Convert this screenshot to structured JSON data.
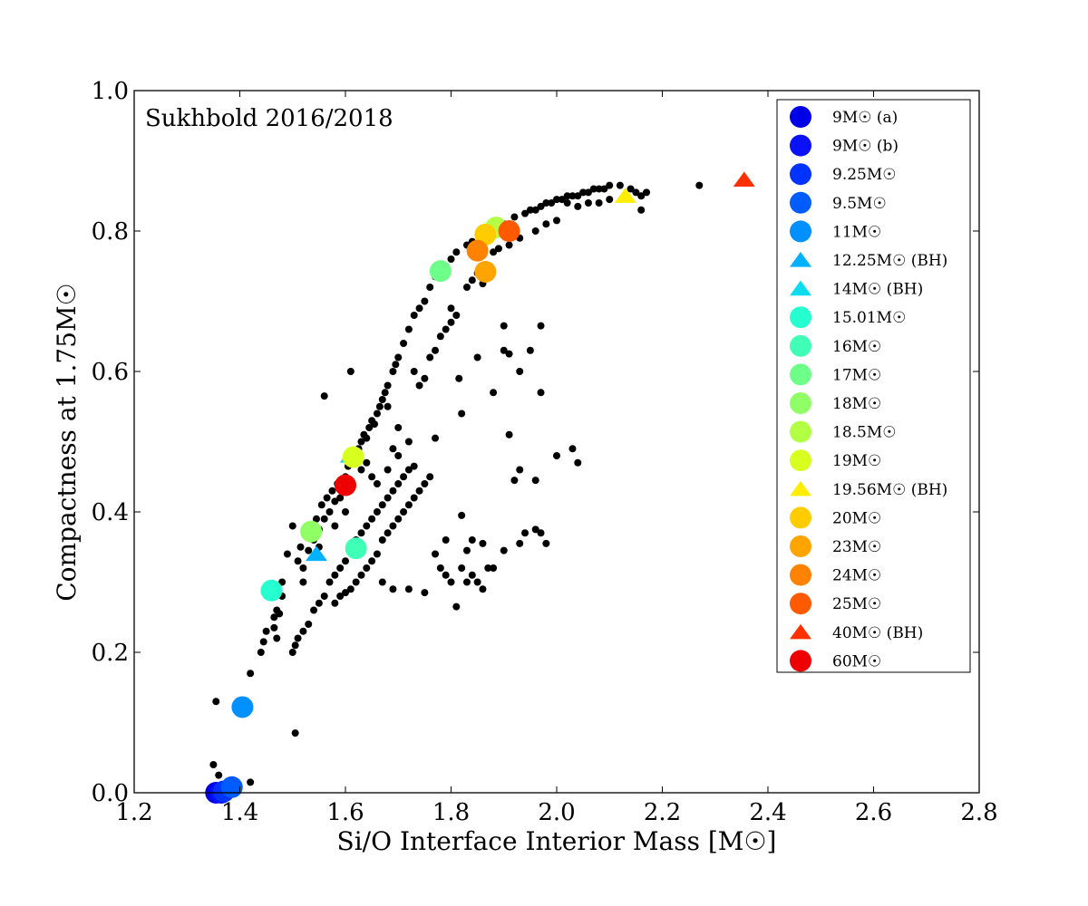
{
  "chart_data": {
    "type": "scatter",
    "annotation": "Sukhbold 2016/2018",
    "xlabel": "Si/O Interface Interior Mass [M☉]",
    "ylabel": "Compactness at 1.75M☉",
    "xlim": [
      1.2,
      2.8
    ],
    "ylim": [
      0.0,
      1.0
    ],
    "xticks": [
      "1.2",
      "1.4",
      "1.6",
      "1.8",
      "2.0",
      "2.2",
      "2.4",
      "2.6",
      "2.8"
    ],
    "yticks": [
      "0.0",
      "0.2",
      "0.4",
      "0.6",
      "0.8",
      "1.0"
    ],
    "legend_position": "top-right",
    "background_points": [
      [
        1.35,
        0.04
      ],
      [
        1.355,
        0.13
      ],
      [
        1.36,
        0.025
      ],
      [
        1.42,
        0.015
      ],
      [
        1.42,
        0.17
      ],
      [
        1.44,
        0.2
      ],
      [
        1.445,
        0.215
      ],
      [
        1.45,
        0.23
      ],
      [
        1.465,
        0.25
      ],
      [
        1.465,
        0.235
      ],
      [
        1.47,
        0.22
      ],
      [
        1.475,
        0.255
      ],
      [
        1.48,
        0.3
      ],
      [
        1.49,
        0.34
      ],
      [
        1.5,
        0.38
      ],
      [
        1.505,
        0.085
      ],
      [
        1.51,
        0.33
      ],
      [
        1.515,
        0.35
      ],
      [
        1.52,
        0.32
      ],
      [
        1.53,
        0.345
      ],
      [
        1.54,
        0.36
      ],
      [
        1.545,
        0.39
      ],
      [
        1.55,
        0.375
      ],
      [
        1.555,
        0.41
      ],
      [
        1.56,
        0.39
      ],
      [
        1.565,
        0.42
      ],
      [
        1.57,
        0.4
      ],
      [
        1.575,
        0.43
      ],
      [
        1.58,
        0.415
      ],
      [
        1.585,
        0.44
      ],
      [
        1.59,
        0.42
      ],
      [
        1.6,
        0.45
      ],
      [
        1.605,
        0.465
      ],
      [
        1.61,
        0.47
      ],
      [
        1.62,
        0.48
      ],
      [
        1.625,
        0.49
      ],
      [
        1.63,
        0.5
      ],
      [
        1.635,
        0.51
      ],
      [
        1.64,
        0.505
      ],
      [
        1.645,
        0.52
      ],
      [
        1.65,
        0.53
      ],
      [
        1.655,
        0.525
      ],
      [
        1.66,
        0.54
      ],
      [
        1.665,
        0.55
      ],
      [
        1.67,
        0.56
      ],
      [
        1.675,
        0.57
      ],
      [
        1.68,
        0.58
      ],
      [
        1.69,
        0.6
      ],
      [
        1.695,
        0.61
      ],
      [
        1.7,
        0.62
      ],
      [
        1.71,
        0.64
      ],
      [
        1.72,
        0.66
      ],
      [
        1.73,
        0.68
      ],
      [
        1.74,
        0.69
      ],
      [
        1.75,
        0.7
      ],
      [
        1.76,
        0.72
      ],
      [
        1.77,
        0.735
      ],
      [
        1.79,
        0.75
      ],
      [
        1.8,
        0.76
      ],
      [
        1.81,
        0.77
      ],
      [
        1.83,
        0.78
      ],
      [
        1.84,
        0.785
      ],
      [
        1.86,
        0.79
      ],
      [
        1.87,
        0.8
      ],
      [
        1.88,
        0.8
      ],
      [
        1.89,
        0.805
      ],
      [
        1.9,
        0.81
      ],
      [
        1.92,
        0.82
      ],
      [
        1.94,
        0.825
      ],
      [
        1.95,
        0.83
      ],
      [
        1.96,
        0.83
      ],
      [
        1.97,
        0.835
      ],
      [
        1.98,
        0.84
      ],
      [
        1.99,
        0.84
      ],
      [
        2.0,
        0.845
      ],
      [
        2.01,
        0.845
      ],
      [
        2.02,
        0.85
      ],
      [
        2.03,
        0.85
      ],
      [
        2.04,
        0.85
      ],
      [
        2.05,
        0.855
      ],
      [
        2.06,
        0.855
      ],
      [
        2.07,
        0.86
      ],
      [
        2.08,
        0.86
      ],
      [
        2.09,
        0.86
      ],
      [
        2.1,
        0.865
      ],
      [
        2.12,
        0.865
      ],
      [
        2.14,
        0.86
      ],
      [
        2.15,
        0.855
      ],
      [
        2.16,
        0.85
      ],
      [
        2.16,
        0.83
      ],
      [
        2.17,
        0.855
      ],
      [
        2.02,
        0.84
      ],
      [
        2.04,
        0.835
      ],
      [
        2.06,
        0.84
      ],
      [
        2.08,
        0.84
      ],
      [
        2.1,
        0.845
      ],
      [
        1.96,
        0.8
      ],
      [
        1.98,
        0.81
      ],
      [
        2.0,
        0.815
      ],
      [
        1.93,
        0.79
      ],
      [
        1.91,
        0.78
      ],
      [
        1.89,
        0.775
      ],
      [
        1.88,
        0.77
      ],
      [
        1.85,
        0.74
      ],
      [
        1.84,
        0.73
      ],
      [
        1.86,
        0.725
      ],
      [
        2.27,
        0.865
      ],
      [
        1.5,
        0.2
      ],
      [
        1.505,
        0.21
      ],
      [
        1.51,
        0.22
      ],
      [
        1.52,
        0.23
      ],
      [
        1.53,
        0.24
      ],
      [
        1.54,
        0.26
      ],
      [
        1.55,
        0.27
      ],
      [
        1.56,
        0.28
      ],
      [
        1.57,
        0.3
      ],
      [
        1.58,
        0.31
      ],
      [
        1.59,
        0.32
      ],
      [
        1.6,
        0.33
      ],
      [
        1.61,
        0.35
      ],
      [
        1.62,
        0.36
      ],
      [
        1.63,
        0.37
      ],
      [
        1.64,
        0.38
      ],
      [
        1.65,
        0.39
      ],
      [
        1.66,
        0.4
      ],
      [
        1.67,
        0.41
      ],
      [
        1.68,
        0.42
      ],
      [
        1.69,
        0.43
      ],
      [
        1.7,
        0.44
      ],
      [
        1.71,
        0.45
      ],
      [
        1.72,
        0.46
      ],
      [
        1.73,
        0.465
      ],
      [
        1.58,
        0.27
      ],
      [
        1.59,
        0.28
      ],
      [
        1.6,
        0.285
      ],
      [
        1.61,
        0.29
      ],
      [
        1.62,
        0.3
      ],
      [
        1.63,
        0.31
      ],
      [
        1.64,
        0.32
      ],
      [
        1.65,
        0.33
      ],
      [
        1.66,
        0.34
      ],
      [
        1.67,
        0.36
      ],
      [
        1.68,
        0.37
      ],
      [
        1.69,
        0.38
      ],
      [
        1.7,
        0.39
      ],
      [
        1.71,
        0.4
      ],
      [
        1.72,
        0.41
      ],
      [
        1.73,
        0.42
      ],
      [
        1.74,
        0.43
      ],
      [
        1.75,
        0.44
      ],
      [
        1.76,
        0.45
      ],
      [
        1.67,
        0.3
      ],
      [
        1.69,
        0.29
      ],
      [
        1.72,
        0.29
      ],
      [
        1.75,
        0.285
      ],
      [
        1.77,
        0.34
      ],
      [
        1.78,
        0.32
      ],
      [
        1.79,
        0.31
      ],
      [
        1.8,
        0.3
      ],
      [
        1.81,
        0.265
      ],
      [
        1.82,
        0.32
      ],
      [
        1.83,
        0.3
      ],
      [
        1.84,
        0.31
      ],
      [
        1.85,
        0.3
      ],
      [
        1.86,
        0.29
      ],
      [
        1.87,
        0.32
      ],
      [
        1.88,
        0.32
      ],
      [
        1.79,
        0.36
      ],
      [
        1.82,
        0.395
      ],
      [
        1.83,
        0.345
      ],
      [
        1.84,
        0.36
      ],
      [
        1.86,
        0.355
      ],
      [
        1.82,
        0.54
      ],
      [
        1.815,
        0.59
      ],
      [
        1.8,
        0.69
      ],
      [
        1.83,
        0.72
      ],
      [
        1.77,
        0.505
      ],
      [
        1.73,
        0.6
      ],
      [
        1.85,
        0.62
      ],
      [
        1.9,
        0.63
      ],
      [
        1.91,
        0.51
      ],
      [
        1.93,
        0.6
      ],
      [
        1.95,
        0.63
      ],
      [
        1.97,
        0.665
      ],
      [
        1.97,
        0.57
      ],
      [
        1.88,
        0.57
      ],
      [
        1.9,
        0.665
      ],
      [
        1.91,
        0.625
      ],
      [
        1.92,
        0.445
      ],
      [
        1.93,
        0.46
      ],
      [
        2.0,
        0.48
      ],
      [
        2.03,
        0.49
      ],
      [
        2.04,
        0.47
      ],
      [
        1.96,
        0.445
      ],
      [
        1.9,
        0.345
      ],
      [
        1.93,
        0.355
      ],
      [
        1.94,
        0.37
      ],
      [
        1.96,
        0.375
      ],
      [
        1.97,
        0.37
      ],
      [
        1.98,
        0.355
      ],
      [
        1.56,
        0.565
      ],
      [
        1.61,
        0.6
      ],
      [
        1.68,
        0.55
      ],
      [
        1.7,
        0.52
      ],
      [
        1.72,
        0.5
      ],
      [
        1.65,
        0.45
      ],
      [
        1.66,
        0.44
      ],
      [
        1.6,
        0.4
      ],
      [
        1.58,
        0.38
      ],
      [
        1.55,
        0.35
      ],
      [
        1.52,
        0.3
      ],
      [
        1.48,
        0.28
      ],
      [
        1.47,
        0.26
      ],
      [
        1.63,
        0.46
      ],
      [
        1.64,
        0.47
      ],
      [
        1.68,
        0.46
      ],
      [
        1.69,
        0.49
      ],
      [
        1.7,
        0.48
      ],
      [
        1.74,
        0.58
      ],
      [
        1.75,
        0.59
      ],
      [
        1.76,
        0.62
      ],
      [
        1.77,
        0.63
      ],
      [
        1.78,
        0.65
      ],
      [
        1.79,
        0.66
      ],
      [
        1.8,
        0.67
      ],
      [
        1.81,
        0.68
      ]
    ],
    "series": [
      {
        "name": "9M☉ (a)",
        "x": 1.355,
        "y": 0.0,
        "marker": "circle",
        "color": "#0000e6"
      },
      {
        "name": "9M☉ (b)",
        "x": 1.365,
        "y": 0.0,
        "marker": "circle",
        "color": "#0a12f5"
      },
      {
        "name": "9.25M☉",
        "x": 1.37,
        "y": 0.002,
        "marker": "circle",
        "color": "#0033ff"
      },
      {
        "name": "9.5M☉",
        "x": 1.385,
        "y": 0.008,
        "marker": "circle",
        "color": "#005cff"
      },
      {
        "name": "11M☉",
        "x": 1.405,
        "y": 0.122,
        "marker": "circle",
        "color": "#0090ff"
      },
      {
        "name": "12.25M☉ (BH)",
        "x": 1.545,
        "y": 0.34,
        "marker": "triangle",
        "color": "#00b2ff"
      },
      {
        "name": "14M☉ (BH)",
        "x": 1.61,
        "y": 0.48,
        "marker": "triangle",
        "color": "#0ddcf0"
      },
      {
        "name": "15.01M☉",
        "x": 1.46,
        "y": 0.288,
        "marker": "circle",
        "color": "#26ffd0"
      },
      {
        "name": "16M☉",
        "x": 1.62,
        "y": 0.348,
        "marker": "circle",
        "color": "#40ffb6"
      },
      {
        "name": "17M☉",
        "x": 1.78,
        "y": 0.743,
        "marker": "circle",
        "color": "#6dff8a"
      },
      {
        "name": "18M☉",
        "x": 1.535,
        "y": 0.372,
        "marker": "circle",
        "color": "#90ff66"
      },
      {
        "name": "18.5M☉",
        "x": 1.885,
        "y": 0.805,
        "marker": "circle",
        "color": "#b2ff46"
      },
      {
        "name": "19M☉",
        "x": 1.615,
        "y": 0.478,
        "marker": "circle",
        "color": "#d7ff20"
      },
      {
        "name": "19.56M☉ (BH)",
        "x": 2.13,
        "y": 0.85,
        "marker": "triangle",
        "color": "#ffee00"
      },
      {
        "name": "20M☉",
        "x": 1.865,
        "y": 0.795,
        "marker": "circle",
        "color": "#ffcc00"
      },
      {
        "name": "23M☉",
        "x": 1.865,
        "y": 0.742,
        "marker": "circle",
        "color": "#ffa400"
      },
      {
        "name": "24M☉",
        "x": 1.85,
        "y": 0.772,
        "marker": "circle",
        "color": "#ff8200"
      },
      {
        "name": "25M☉",
        "x": 1.91,
        "y": 0.8,
        "marker": "circle",
        "color": "#ff5a00"
      },
      {
        "name": "40M☉ (BH)",
        "x": 2.355,
        "y": 0.873,
        "marker": "triangle",
        "color": "#ff3000"
      },
      {
        "name": "60M☉",
        "x": 1.6,
        "y": 0.438,
        "marker": "circle",
        "color": "#ee0000"
      }
    ]
  }
}
